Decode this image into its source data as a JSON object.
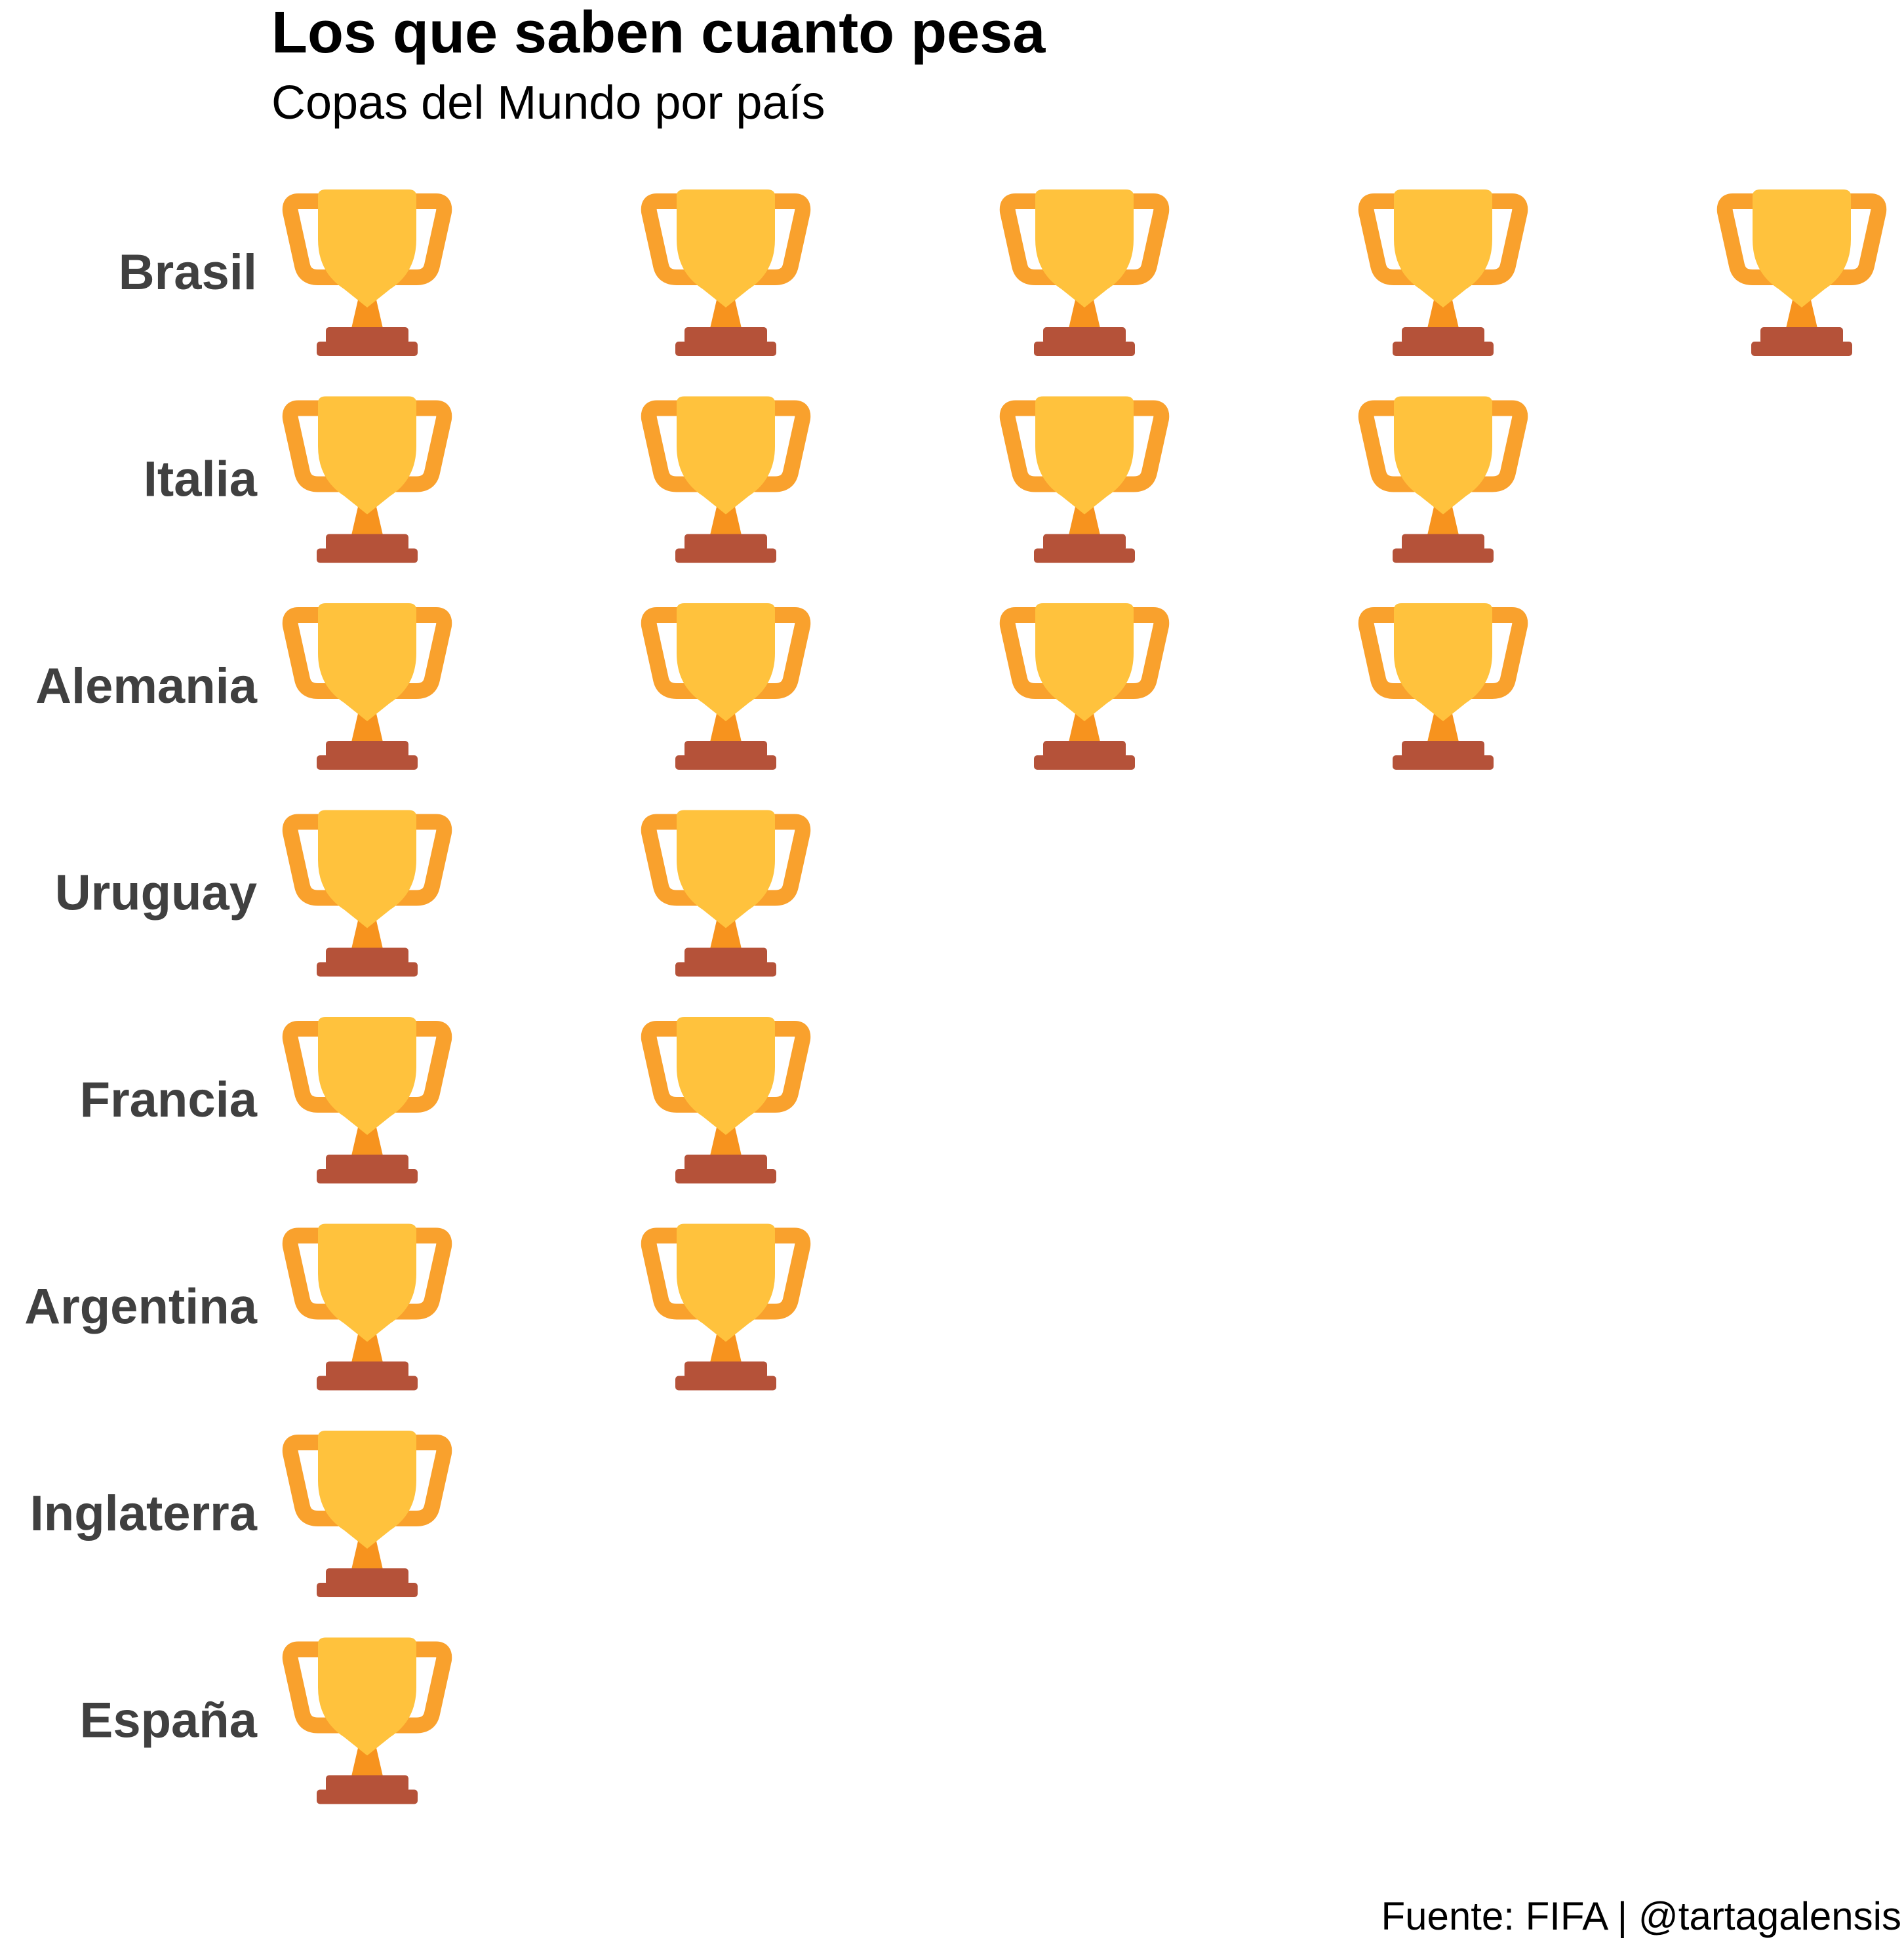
{
  "chart_data": {
    "type": "pictogram",
    "title": "Los que saben cuanto pesa",
    "subtitle": "Copas del Mundo por país",
    "caption": "Fuente: FIFA | @tartagalensis",
    "icon": "trophy-icon",
    "categories": [
      "Brasil",
      "Italia",
      "Alemania",
      "Uruguay",
      "Francia",
      "Argentina",
      "Inglaterra",
      "España"
    ],
    "values": [
      5,
      4,
      4,
      2,
      2,
      2,
      1,
      1
    ],
    "colors": {
      "cup": "#FFC23D",
      "handles": "#F9A12D",
      "stem": "#F7931E",
      "base": "#B55239",
      "label": "#404040"
    }
  }
}
